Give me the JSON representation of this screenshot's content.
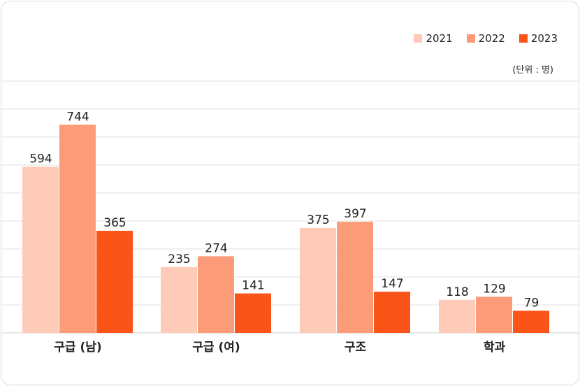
{
  "chart_data": {
    "type": "bar",
    "unit_note": "(단위 : 명)",
    "categories": [
      "구급 (남)",
      "구급 (여)",
      "구조",
      "학과"
    ],
    "series": [
      {
        "name": "2021",
        "color": "#fdcbb7",
        "values": [
          594,
          235,
          375,
          118
        ]
      },
      {
        "name": "2022",
        "color": "#fc9b78",
        "values": [
          744,
          274,
          397,
          129
        ]
      },
      {
        "name": "2023",
        "color": "#fb5418",
        "values": [
          365,
          141,
          147,
          79
        ]
      }
    ],
    "ylim": [
      0,
      900
    ],
    "grid": true,
    "legend": "top-right"
  }
}
